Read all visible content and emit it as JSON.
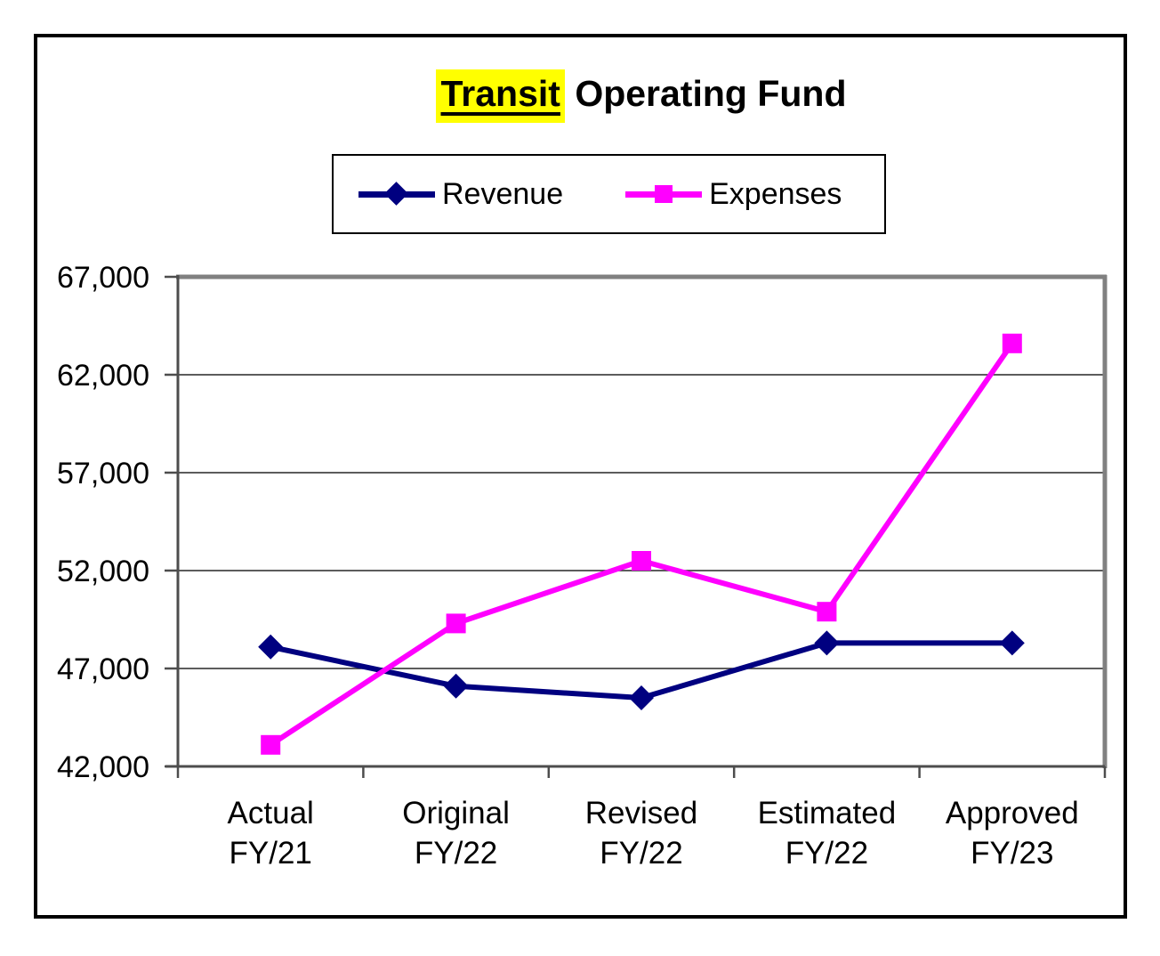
{
  "title": {
    "highlighted": "Transit",
    "rest": " Operating Fund"
  },
  "legend": [
    {
      "name": "Revenue",
      "color": "#000080",
      "marker": "diamond"
    },
    {
      "name": "Expenses",
      "color": "#ff00ff",
      "marker": "square"
    }
  ],
  "colors": {
    "revenue": "#000080",
    "expenses": "#ff00ff",
    "highlight": "#ffff00",
    "gridline": "#262626",
    "axis": "#4d4d4d",
    "plot_border": "#808080"
  },
  "chart_data": {
    "type": "line",
    "title": "Transit Operating Fund",
    "categories": [
      [
        "Actual",
        "FY/21"
      ],
      [
        "Original",
        "FY/22"
      ],
      [
        "Revised",
        "FY/22"
      ],
      [
        "Estimated",
        "FY/22"
      ],
      [
        "Approved",
        "FY/23"
      ]
    ],
    "series": [
      {
        "name": "Revenue",
        "color": "#000080",
        "marker": "diamond",
        "values": [
          48100,
          46100,
          45500,
          48300,
          48300
        ]
      },
      {
        "name": "Expenses",
        "color": "#ff00ff",
        "marker": "square",
        "values": [
          43100,
          49300,
          52500,
          49900,
          63600
        ]
      }
    ],
    "y_ticks": [
      42000,
      47000,
      52000,
      57000,
      62000,
      67000
    ],
    "y_tick_labels": [
      "42,000",
      "47,000",
      "52,000",
      "57,000",
      "62,000",
      "67,000"
    ],
    "ylim": [
      42000,
      67000
    ],
    "xlabel": "",
    "ylabel": "",
    "grid": true,
    "legend_position": "top"
  }
}
